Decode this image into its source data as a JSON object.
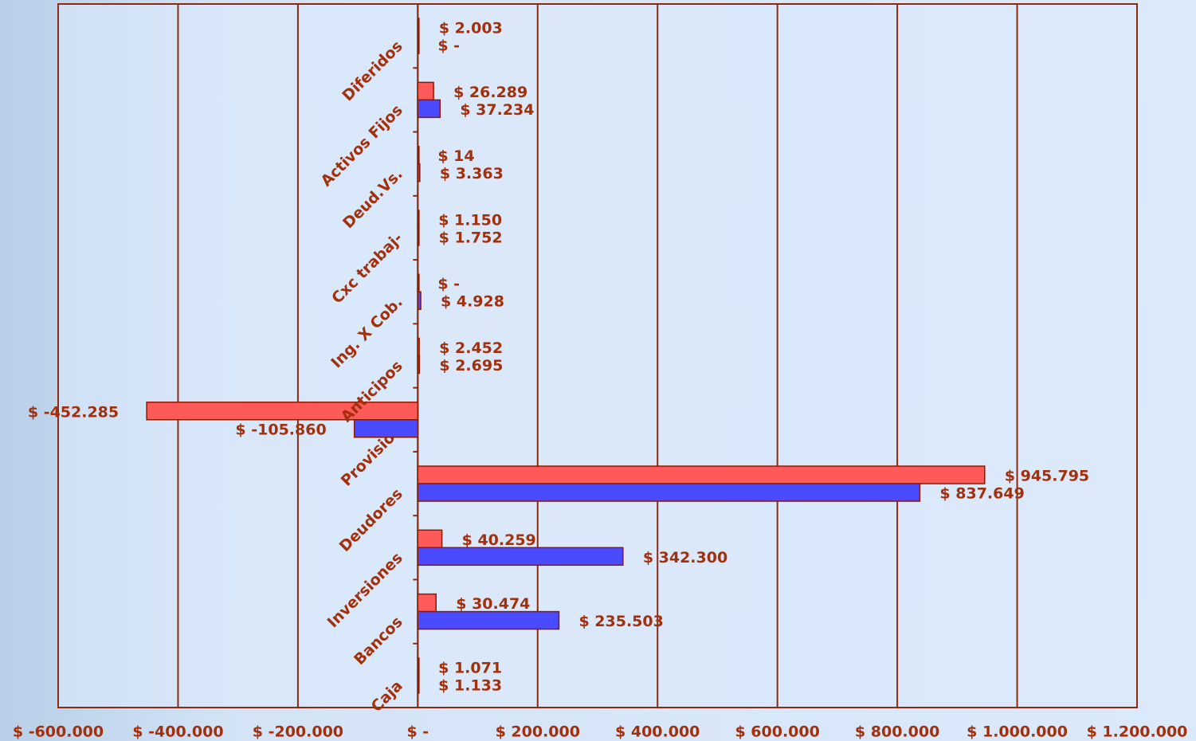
{
  "chart_data": {
    "type": "hbar",
    "categories": [
      "Caja",
      "Bancos",
      "Inversiones",
      "Deudores",
      "Provisión",
      "Anticipos",
      "Ing. X Cob.",
      "Cxc trabaj-",
      "Deud.Vs.",
      "Activos Fijos",
      "Diferidos"
    ],
    "series": [
      {
        "color": "#ff5a5a",
        "values": [
          1071,
          30474,
          40259,
          945795,
          -452285,
          2452,
          0,
          1150,
          14,
          26289,
          2003
        ],
        "value_labels": [
          "$ 1.071",
          "$ 30.474",
          "$ 40.259",
          "$ 945.795",
          "$ -452.285",
          "$ 2.452",
          "$ -",
          "$ 1.150",
          "$ 14",
          "$ 26.289",
          "$ 2.003"
        ]
      },
      {
        "color": "#4a4aff",
        "values": [
          1133,
          235503,
          342300,
          837649,
          -105860,
          2695,
          4928,
          1752,
          3363,
          37234,
          0
        ],
        "value_labels": [
          "$ 1.133",
          "$ 235.503",
          "$ 342.300",
          "$ 837.649",
          "$ -105.860",
          "$ 2.695",
          "$ 4.928",
          "$ 1.752",
          "$ 3.363",
          "$ 37.234",
          "$ -"
        ]
      }
    ],
    "xlim": [
      -600000,
      1200000
    ],
    "xticks": [
      {
        "value": -600000,
        "label": "$ -600.000"
      },
      {
        "value": -400000,
        "label": "$ -400.000"
      },
      {
        "value": -200000,
        "label": "$ -200.000"
      },
      {
        "value": 0,
        "label": "$ -"
      },
      {
        "value": 200000,
        "label": "$ 200.000"
      },
      {
        "value": 400000,
        "label": "$ 400.000"
      },
      {
        "value": 600000,
        "label": "$ 600.000"
      },
      {
        "value": 800000,
        "label": "$ 800.000"
      },
      {
        "value": 1000000,
        "label": "$ 1.000.000"
      },
      {
        "value": 1200000,
        "label": "$ 1.200.000"
      }
    ],
    "grid": true
  }
}
